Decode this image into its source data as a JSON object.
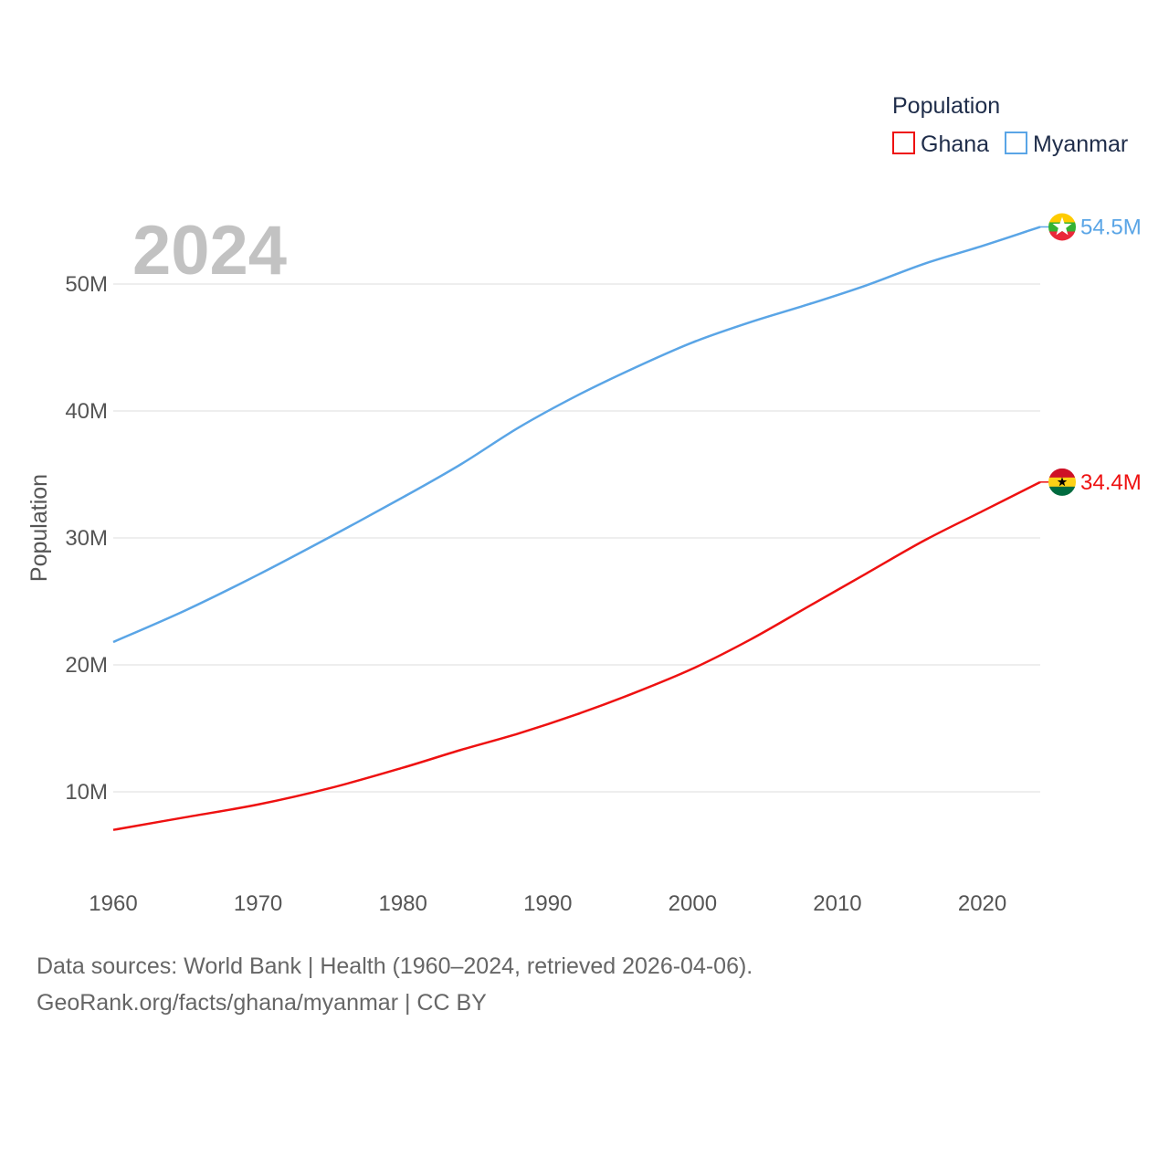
{
  "chart_data": {
    "type": "line",
    "title": "Population",
    "current_year_label": "2024",
    "ylabel": "Population",
    "xlabel": "",
    "xlim": [
      1960,
      2024
    ],
    "ylim": [
      4000000,
      58000000
    ],
    "x_ticks": [
      1960,
      1970,
      1980,
      1990,
      2000,
      2010,
      2020
    ],
    "y_ticks": [
      {
        "value": 10000000,
        "label": "10M"
      },
      {
        "value": 20000000,
        "label": "20M"
      },
      {
        "value": 30000000,
        "label": "30M"
      },
      {
        "value": 40000000,
        "label": "40M"
      },
      {
        "value": 50000000,
        "label": "50M"
      }
    ],
    "grid": true,
    "legend": {
      "title": "Population",
      "position": "top-right"
    },
    "x": [
      1960,
      1965,
      1970,
      1975,
      1980,
      1984,
      1988,
      1992,
      1996,
      2000,
      2004,
      2008,
      2012,
      2016,
      2020,
      2024
    ],
    "series": [
      {
        "name": "Ghana",
        "color": "#ee1111",
        "end_label": "34.4M",
        "flag": "ghana-flag-icon",
        "values": [
          7000000,
          8000000,
          9000000,
          10300000,
          11900000,
          13300000,
          14600000,
          16100000,
          17800000,
          19700000,
          22000000,
          24600000,
          27200000,
          29800000,
          32100000,
          34400000
        ]
      },
      {
        "name": "Myanmar",
        "color": "#5aa5e6",
        "end_label": "54.5M",
        "flag": "myanmar-flag-icon",
        "values": [
          21800000,
          24300000,
          27100000,
          30100000,
          33200000,
          35800000,
          38700000,
          41200000,
          43400000,
          45400000,
          47000000,
          48400000,
          49900000,
          51600000,
          53000000,
          54500000
        ]
      }
    ]
  },
  "footer": {
    "source_line": "Data sources: World Bank | Health (1960–2024, retrieved 2026-04-06).",
    "credit_line": "GeoRank.org/facts/ghana/myanmar | CC BY"
  }
}
